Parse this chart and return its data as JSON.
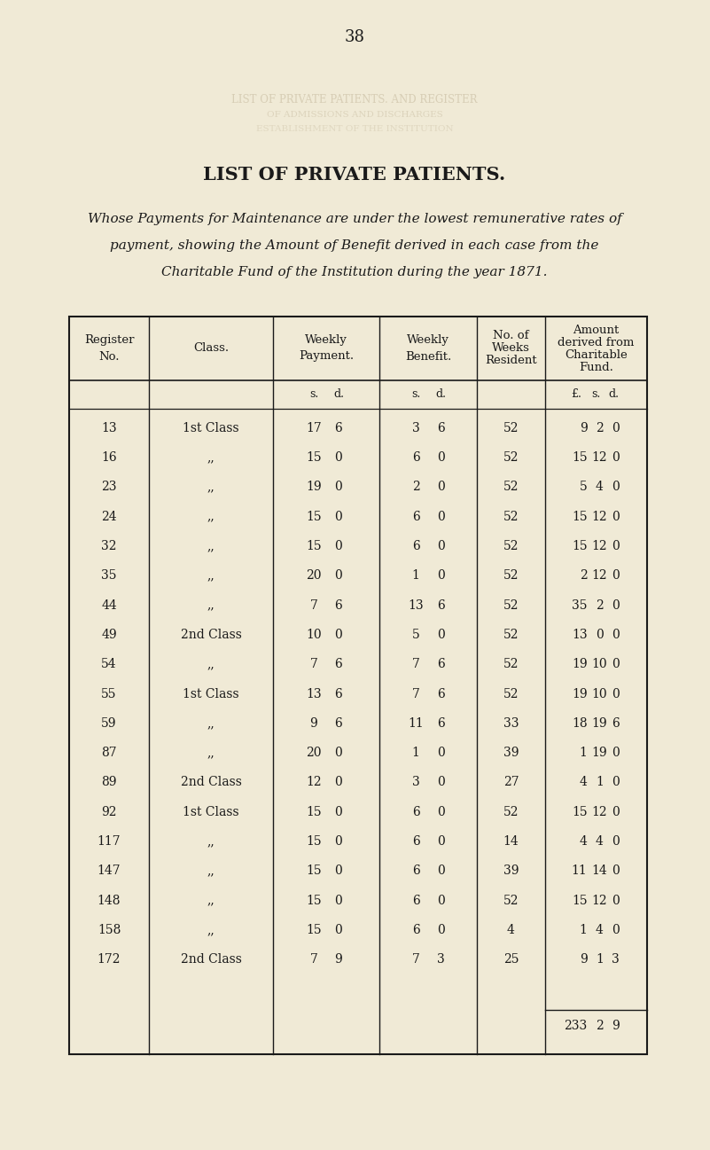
{
  "page_number": "38",
  "title": "LIST OF PRIVATE PATIENTS.",
  "subtitle_lines": [
    "Whose Payments for Maintenance are under the lowest remunerative rates of",
    "payment, showing the Amount of Benefit derived in each case from the",
    "Charitable Fund of the Institution during the year 1871."
  ],
  "bg_color": "#f0ead6",
  "text_color": "#1a1a1a",
  "rows": [
    [
      "13",
      "1st Class",
      "17",
      "6",
      "3",
      "6",
      "52",
      "9",
      "2",
      "0"
    ],
    [
      "16",
      ",,",
      "15",
      "0",
      "6",
      "0",
      "52",
      "15",
      "12",
      "0"
    ],
    [
      "23",
      ",,",
      "19",
      "0",
      "2",
      "0",
      "52",
      "5",
      "4",
      "0"
    ],
    [
      "24",
      ",,",
      "15",
      "0",
      "6",
      "0",
      "52",
      "15",
      "12",
      "0"
    ],
    [
      "32",
      ",,",
      "15",
      "0",
      "6",
      "0",
      "52",
      "15",
      "12",
      "0"
    ],
    [
      "35",
      ",,",
      "20",
      "0",
      "1",
      "0",
      "52",
      "2",
      "12",
      "0"
    ],
    [
      "44",
      ",,",
      "7",
      "6",
      "13",
      "6",
      "52",
      "35",
      "2",
      "0"
    ],
    [
      "49",
      "2nd Class",
      "10",
      "0",
      "5",
      "0",
      "52",
      "13",
      "0",
      "0"
    ],
    [
      "54",
      ",,",
      "7",
      "6",
      "7",
      "6",
      "52",
      "19",
      "10",
      "0"
    ],
    [
      "55",
      "1st Class",
      "13",
      "6",
      "7",
      "6",
      "52",
      "19",
      "10",
      "0"
    ],
    [
      "59",
      ",,",
      "9",
      "6",
      "11",
      "6",
      "33",
      "18",
      "19",
      "6"
    ],
    [
      "87",
      ",,",
      "20",
      "0",
      "1",
      "0",
      "39",
      "1",
      "19",
      "0"
    ],
    [
      "89",
      "2nd Class",
      "12",
      "0",
      "3",
      "0",
      "27",
      "4",
      "1",
      "0"
    ],
    [
      "92",
      "1st Class",
      "15",
      "0",
      "6",
      "0",
      "52",
      "15",
      "12",
      "0"
    ],
    [
      "117",
      ",,",
      "15",
      "0",
      "6",
      "0",
      "14",
      "4",
      "4",
      "0"
    ],
    [
      "147",
      ",,",
      "15",
      "0",
      "6",
      "0",
      "39",
      "11",
      "14",
      "0"
    ],
    [
      "148",
      ",,",
      "15",
      "0",
      "6",
      "0",
      "52",
      "15",
      "12",
      "0"
    ],
    [
      "158",
      ",,",
      "15",
      "0",
      "6",
      "0",
      "4",
      "1",
      "4",
      "0"
    ],
    [
      "172",
      "2nd Class",
      "7",
      "9",
      "7",
      "3",
      "25",
      "9",
      "1",
      "3"
    ]
  ],
  "total": [
    "233",
    "2",
    "9"
  ]
}
